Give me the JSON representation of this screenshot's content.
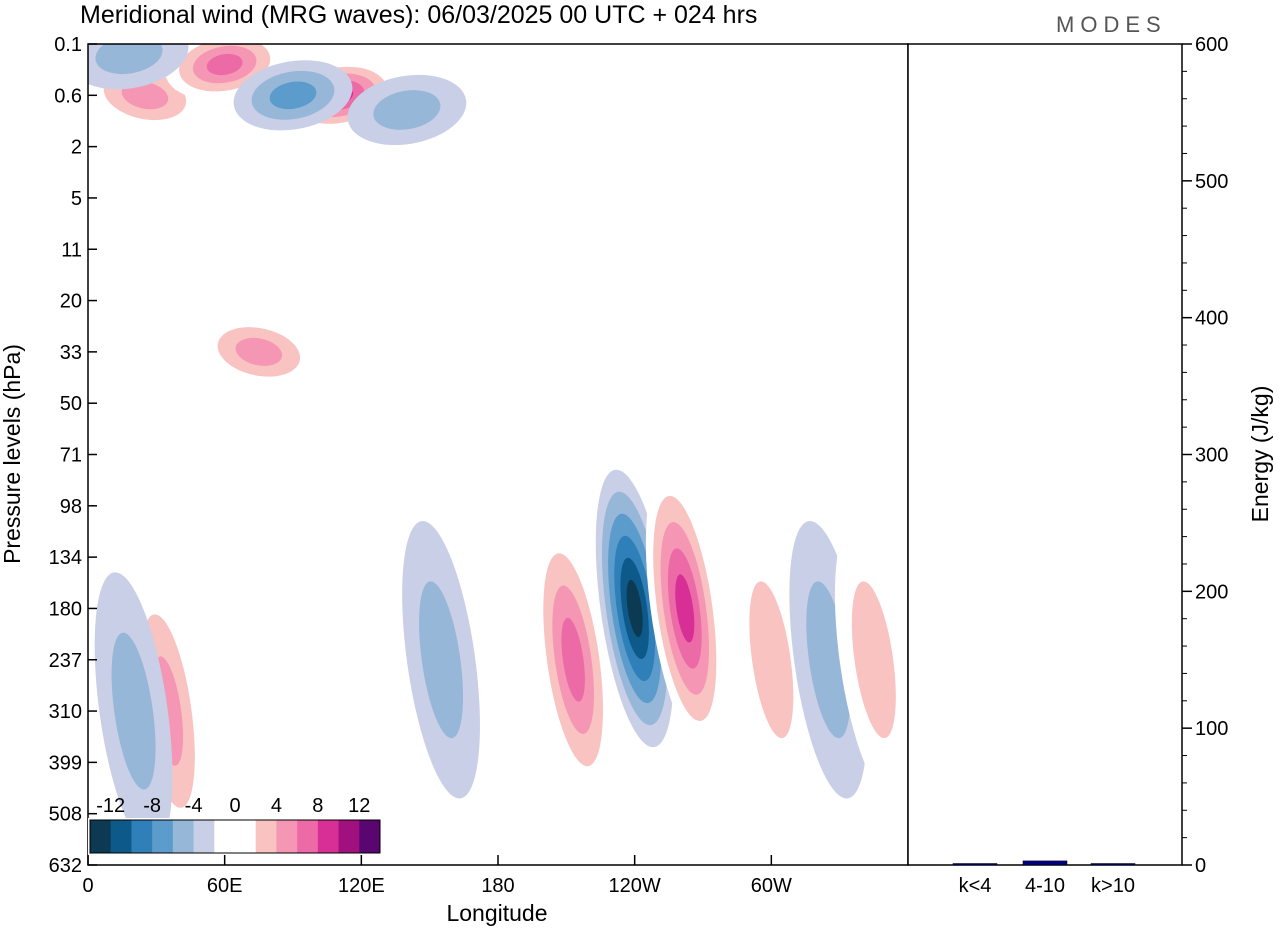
{
  "header": {
    "title": "Meridional wind (MRG waves):  06/03/2025  00 UTC  + 024 hrs",
    "logo": "MODES"
  },
  "chart_data": [
    {
      "type": "heatmap",
      "title": "Meridional wind (MRG waves):  06/03/2025  00 UTC  + 024 hrs",
      "xlabel": "Longitude",
      "ylabel": "Pressure levels (hPa)",
      "x_ticks": [
        "0",
        "60E",
        "120E",
        "180",
        "120W",
        "60W"
      ],
      "y_ticks": [
        "0.1",
        "0.6",
        "2",
        "5",
        "11",
        "20",
        "33",
        "50",
        "71",
        "98",
        "134",
        "180",
        "237",
        "310",
        "399",
        "508",
        "632"
      ],
      "colorbar": {
        "labels": [
          "-12",
          "-8",
          "-4",
          "0",
          "4",
          "8",
          "12"
        ],
        "levels": [
          -14,
          -12,
          -10,
          -8,
          -6,
          -4,
          -2,
          2,
          4,
          6,
          8,
          10,
          12,
          14
        ],
        "colors": [
          "#0b3a52",
          "#0d5a8a",
          "#2f7fb8",
          "#5b9ccc",
          "#97b7d9",
          "#c9cfe6",
          "#ffffff",
          "#ffffff",
          "#f9c3c2",
          "#f596b4",
          "#ec6aa6",
          "#d72f95",
          "#a0107e",
          "#5a0670"
        ]
      },
      "features": [
        {
          "lon": 110,
          "level": "0.6",
          "v": 12
        },
        {
          "lon": 25,
          "level": "0.6",
          "v": 8
        },
        {
          "lon": 60,
          "level": "0.3",
          "v": 10
        },
        {
          "lon": 90,
          "level": "0.6",
          "v": -8
        },
        {
          "lon": 140,
          "level": "1",
          "v": -6
        },
        {
          "lon": 18,
          "level": "0.2",
          "v": -6
        },
        {
          "lon": 75,
          "level": "33",
          "v": 8
        },
        {
          "lon": 240,
          "level": "180",
          "v": -14
        },
        {
          "lon": 213,
          "level": "237",
          "v": 10
        },
        {
          "lon": 262,
          "level": "180",
          "v": 12
        },
        {
          "lon": 35,
          "level": "310",
          "v": 8
        },
        {
          "lon": 20,
          "level": "310",
          "v": -6
        },
        {
          "lon": 155,
          "level": "237",
          "v": -6
        },
        {
          "lon": 300,
          "level": "237",
          "v": 6
        },
        {
          "lon": 325,
          "level": "237",
          "v": -6
        },
        {
          "lon": 345,
          "level": "237",
          "v": 6
        }
      ]
    },
    {
      "type": "bar",
      "ylabel": "Energy (J/kg)",
      "ylim": [
        0,
        600
      ],
      "y_ticks": [
        "0",
        "100",
        "200",
        "300",
        "400",
        "500",
        "600"
      ],
      "categories": [
        "k<4",
        "4-10",
        "k>10"
      ],
      "values": [
        0.5,
        3,
        0.5
      ],
      "colors": [
        "#000080",
        "#000080",
        "#000080"
      ]
    }
  ]
}
